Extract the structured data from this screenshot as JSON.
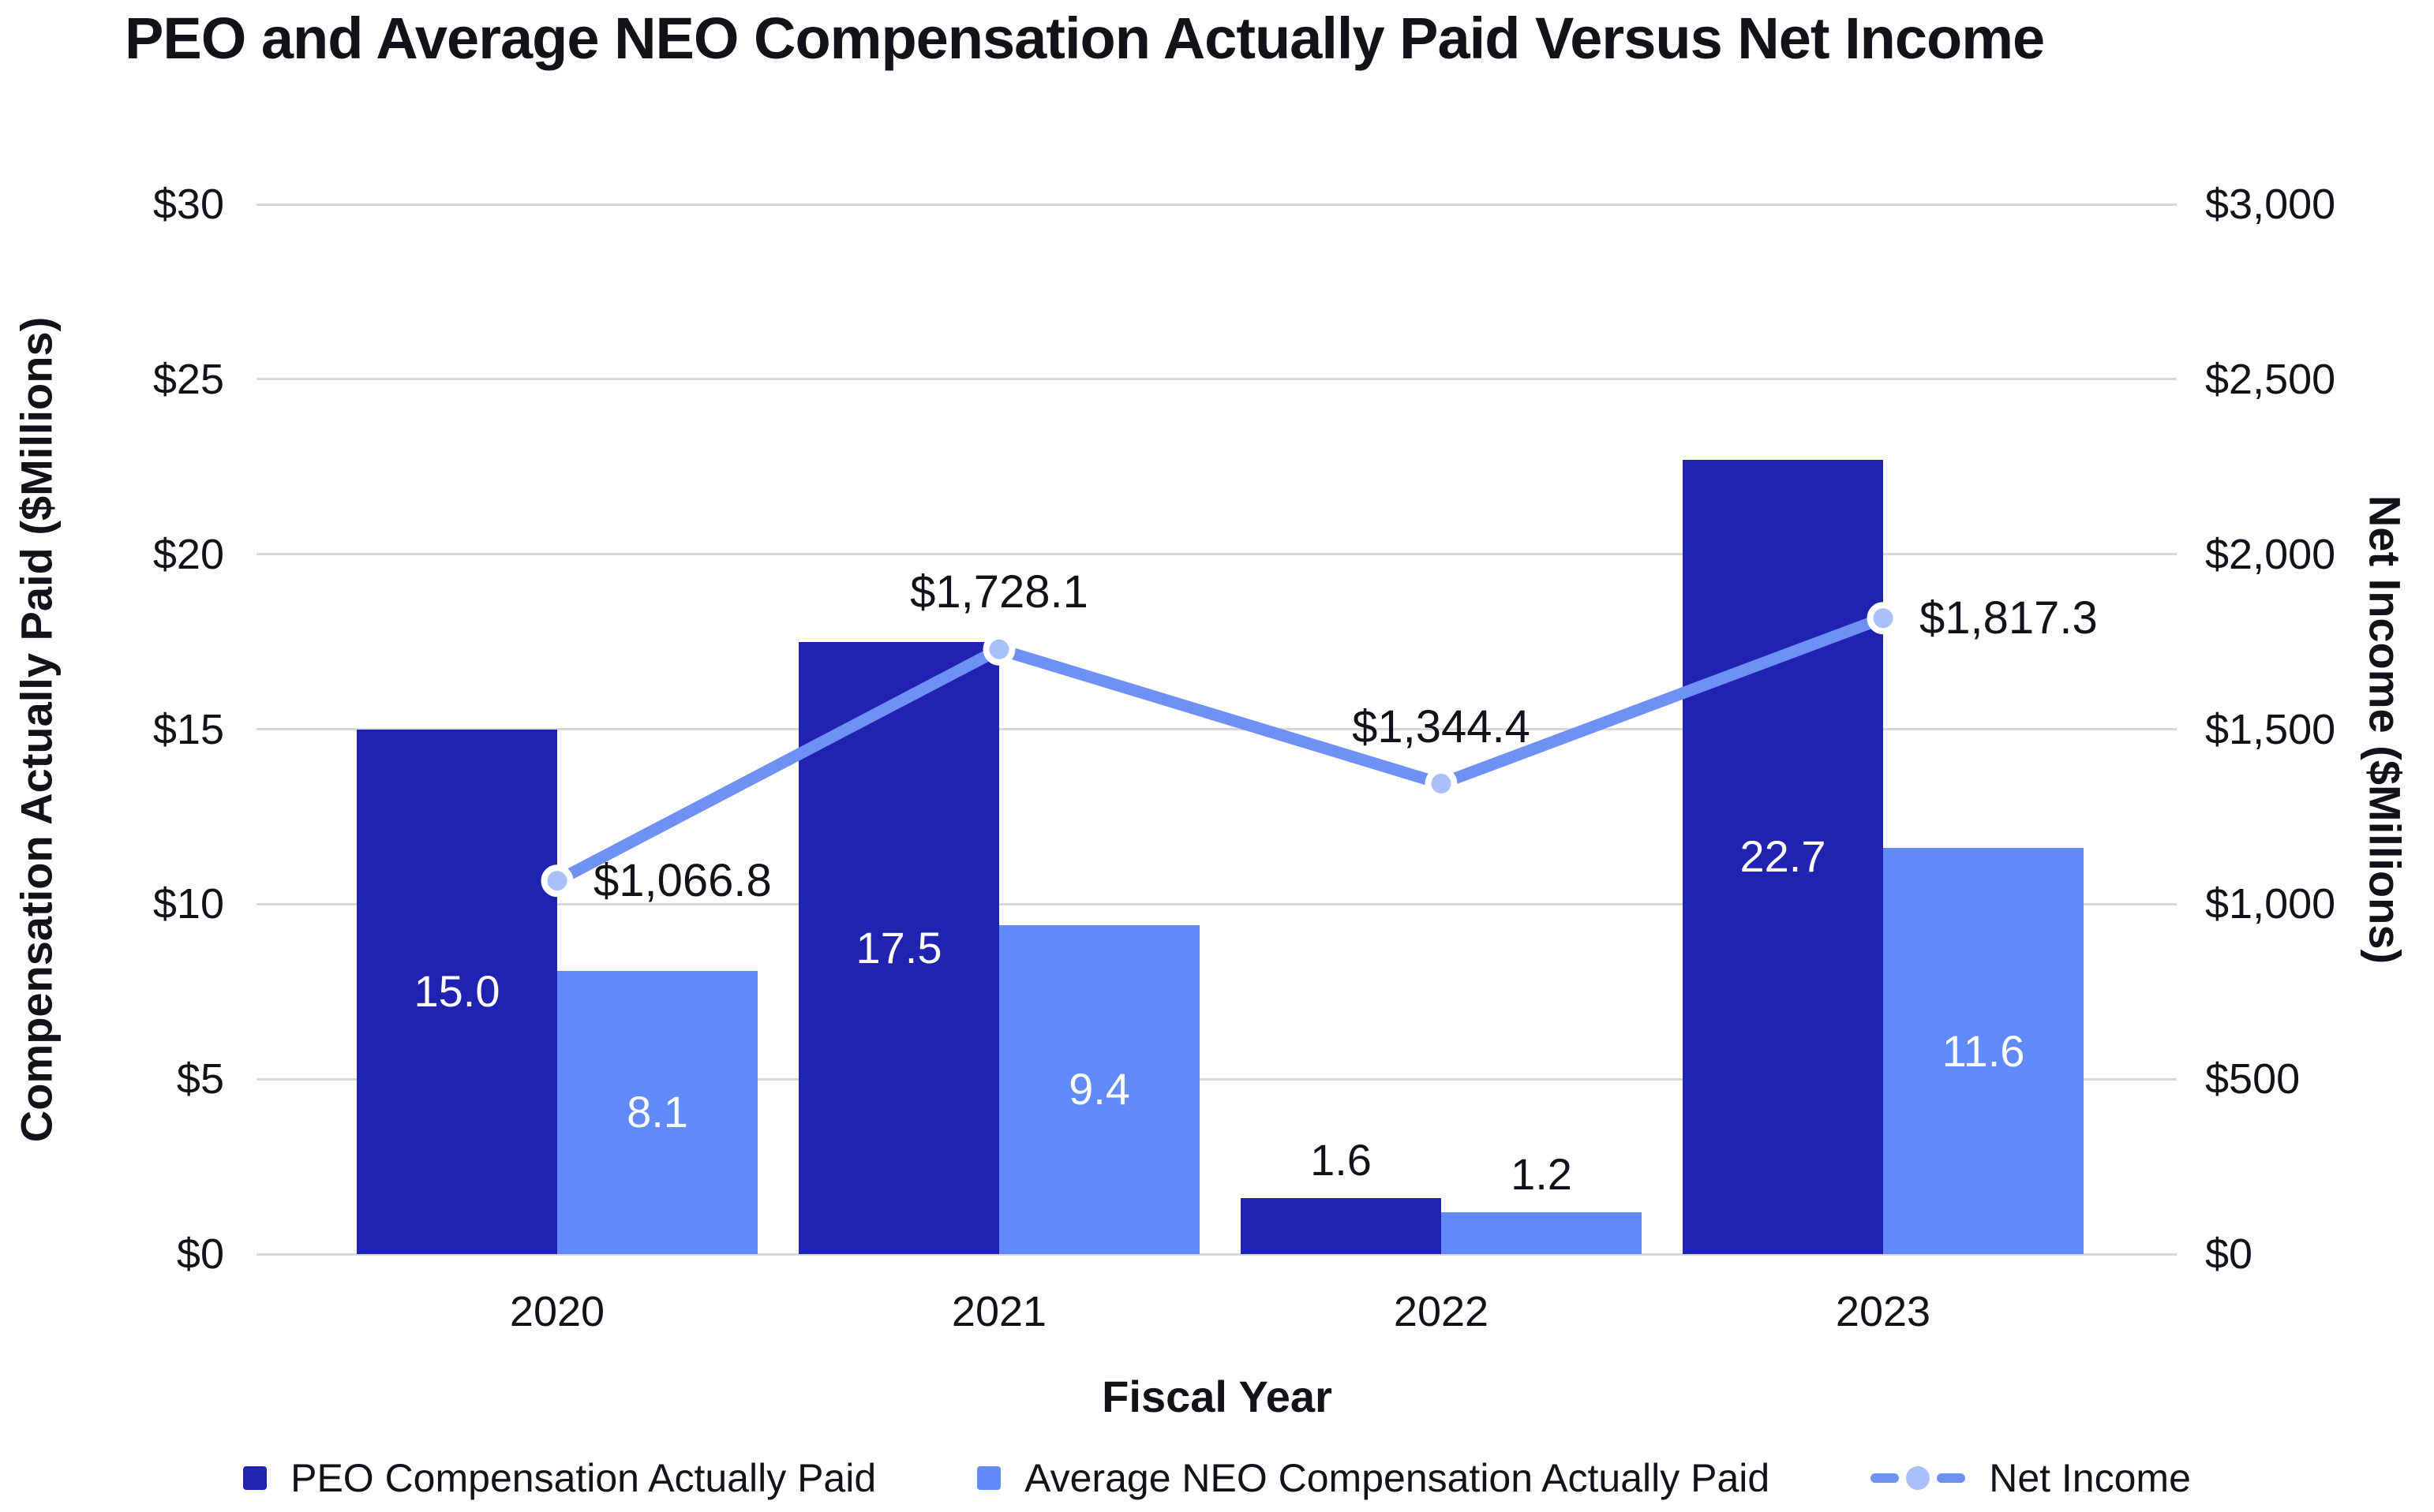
{
  "chart_data": {
    "type": "bar",
    "title": "PEO and Average NEO Compensation Actually Paid Versus Net Income",
    "xlabel": "Fiscal Year",
    "ylabel_left": "Compensation Actually Paid ($Millions)",
    "ylabel_right": "Net Income ($Millions)",
    "categories": [
      "2020",
      "2021",
      "2022",
      "2023"
    ],
    "series": [
      {
        "name": "PEO Compensation Actually Paid",
        "type": "bar",
        "axis": "left",
        "color": "#2023b1",
        "values": [
          15.0,
          17.5,
          1.6,
          22.7
        ],
        "labels": [
          "15.0",
          "17.5",
          "1.6",
          "22.7"
        ]
      },
      {
        "name": "Average NEO Compensation Actually Paid",
        "type": "bar",
        "axis": "left",
        "color": "#618afa",
        "values": [
          8.1,
          9.4,
          1.2,
          11.6
        ],
        "labels": [
          "8.1",
          "9.4",
          "1.2",
          "11.6"
        ]
      },
      {
        "name": "Net Income",
        "type": "line",
        "axis": "right",
        "color": "#6f90f5",
        "marker_fill": "#a9c0fb",
        "marker_ring": "#ffffff",
        "values": [
          1066.8,
          1728.1,
          1344.4,
          1817.3
        ],
        "labels": [
          "$1,066.8",
          "$1,728.1",
          "$1,344.4",
          "$1,817.3"
        ],
        "label_positions": [
          "right",
          "above",
          "above",
          "right"
        ]
      }
    ],
    "left_axis": {
      "min": 0,
      "max": 30,
      "ticks": [
        "$30",
        "$25",
        "$20",
        "$15",
        "$10",
        "$5",
        "$0"
      ]
    },
    "right_axis": {
      "min": 0,
      "max": 3000,
      "ticks": [
        "$3,000",
        "$2,500",
        "$2,000",
        "$1,500",
        "$1,000",
        "$500",
        "$0"
      ]
    },
    "grid": true,
    "legend_position": "bottom",
    "colors": {
      "grid": "#d9d9d9",
      "text": "#121218",
      "bar_label_inside": "#ffffff",
      "bar_label_outside": "#121218",
      "background": "#ffffff"
    }
  }
}
